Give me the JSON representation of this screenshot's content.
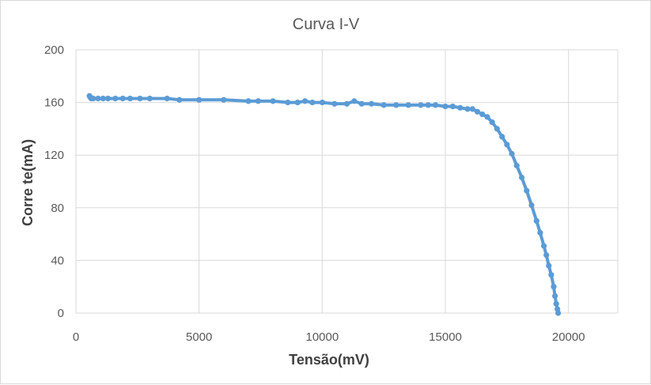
{
  "chart_data": {
    "type": "scatter",
    "title": "Curva I-V",
    "xlabel": "Tensão(mV)",
    "ylabel": "Corre te(mA)",
    "xlim": [
      0,
      22000
    ],
    "ylim": [
      0,
      200
    ],
    "xticks": [
      0,
      5000,
      10000,
      15000,
      20000
    ],
    "yticks": [
      0,
      40,
      80,
      120,
      160,
      200
    ],
    "grid": true,
    "marker_color": "#5b9bd5",
    "series": [
      {
        "x": [
          550,
          580,
          620,
          700,
          900,
          1100,
          1300,
          1600,
          1900,
          2200,
          2600,
          3000,
          3700,
          4200,
          5000,
          6000,
          7000,
          7400,
          8000,
          8600,
          9000,
          9300,
          9600,
          10000,
          10500,
          11000,
          11300,
          11600,
          12000,
          12500,
          13000,
          13500,
          14000,
          14300,
          14600,
          15000,
          15300,
          15600,
          15900,
          16100,
          16300,
          16500,
          16700,
          16900,
          17100,
          17300,
          17500,
          17700,
          17900,
          18100,
          18300,
          18500,
          18700,
          18850,
          19000,
          19100,
          19200,
          19300,
          19400,
          19450,
          19500,
          19550,
          19580
        ],
        "y": [
          165,
          164,
          163,
          163,
          163,
          163,
          163,
          163,
          163,
          163,
          163,
          163,
          163,
          162,
          162,
          162,
          161,
          161,
          161,
          160,
          160,
          161,
          160,
          160,
          159,
          159,
          161,
          159,
          159,
          158,
          158,
          158,
          158,
          158,
          158,
          157,
          157,
          156,
          155,
          155,
          153,
          151,
          149,
          145,
          140,
          134,
          128,
          121,
          112,
          103,
          93,
          82,
          70,
          61,
          51,
          44,
          36,
          29,
          20,
          13,
          7,
          3,
          0
        ]
      }
    ]
  }
}
